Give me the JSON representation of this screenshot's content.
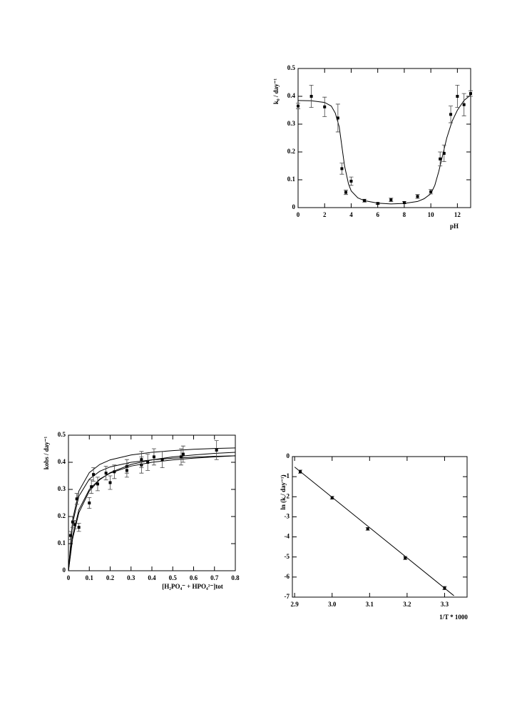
{
  "chart_data": [
    {
      "type": "scatter",
      "y_label": "k₀ / day⁻¹",
      "x_label": "pH",
      "xlim": [
        0,
        13
      ],
      "ylim": [
        0,
        0.5
      ],
      "xticks": [
        0,
        2,
        4,
        6,
        8,
        10,
        12
      ],
      "yticks": [
        0,
        0.1,
        0.2,
        0.3,
        0.4,
        0.5
      ],
      "points": {
        "x": [
          0,
          1,
          2,
          3,
          3.3,
          3.6,
          4,
          5,
          6,
          7,
          8,
          9,
          10,
          10.7,
          11,
          11.5,
          12,
          12.5,
          13
        ],
        "values": [
          0.365,
          0.4,
          0.362,
          0.322,
          0.14,
          0.055,
          0.095,
          0.025,
          0.015,
          0.028,
          0.018,
          0.04,
          0.057,
          0.175,
          0.195,
          0.335,
          0.4,
          0.37,
          0.41
        ],
        "errors": [
          0.01,
          0.04,
          0.035,
          0.05,
          0.02,
          0.008,
          0.015,
          0.005,
          0.003,
          0.006,
          0.004,
          0.007,
          0.008,
          0.025,
          0.03,
          0.03,
          0.04,
          0.04,
          0.01
        ]
      },
      "curves": [
        {
          "x": [
            0,
            1,
            2,
            2.5,
            2.8,
            3.1,
            3.3,
            3.5,
            3.8,
            4,
            4.5,
            5,
            6,
            7,
            8,
            9,
            9.5,
            10,
            10.3,
            10.6,
            10.9,
            11.2,
            11.6,
            12,
            12.5,
            13
          ],
          "values": [
            0.385,
            0.384,
            0.378,
            0.365,
            0.34,
            0.29,
            0.22,
            0.15,
            0.085,
            0.06,
            0.035,
            0.025,
            0.016,
            0.013,
            0.015,
            0.022,
            0.032,
            0.05,
            0.08,
            0.13,
            0.19,
            0.25,
            0.31,
            0.35,
            0.385,
            0.405
          ]
        }
      ]
    },
    {
      "type": "scatter",
      "y_label": "kobs / day⁻¹",
      "x_label": "[H₂PO₄⁻ + HPO₄²⁻]tot",
      "xlim": [
        0,
        0.8
      ],
      "ylim": [
        0,
        0.5
      ],
      "xticks": [
        0,
        0.1,
        0.2,
        0.3,
        0.4,
        0.5,
        0.6,
        0.7,
        0.8
      ],
      "yticks": [
        0,
        0.1,
        0.2,
        0.3,
        0.4,
        0.5
      ],
      "points": {
        "x": [
          0.01,
          0.02,
          0.03,
          0.04,
          0.05,
          0.1,
          0.11,
          0.12,
          0.14,
          0.18,
          0.2,
          0.22,
          0.28,
          0.28,
          0.35,
          0.35,
          0.38,
          0.41,
          0.45,
          0.54,
          0.55,
          0.71
        ],
        "values": [
          0.13,
          0.18,
          0.17,
          0.265,
          0.16,
          0.25,
          0.31,
          0.355,
          0.32,
          0.36,
          0.325,
          0.365,
          0.385,
          0.37,
          0.39,
          0.41,
          0.4,
          0.42,
          0.41,
          0.42,
          0.43,
          0.445
        ],
        "errors": [
          0.015,
          0.02,
          0.015,
          0.02,
          0.015,
          0.02,
          0.025,
          0.025,
          0.025,
          0.025,
          0.025,
          0.025,
          0.025,
          0.025,
          0.03,
          0.03,
          0.03,
          0.03,
          0.03,
          0.03,
          0.03,
          0.035
        ]
      },
      "curves": [
        {
          "x": [
            0,
            0.02,
            0.05,
            0.1,
            0.15,
            0.2,
            0.3,
            0.4,
            0.5,
            0.6,
            0.7,
            0.8
          ],
          "values": [
            0,
            0.188,
            0.294,
            0.362,
            0.392,
            0.409,
            0.427,
            0.437,
            0.443,
            0.448,
            0.451,
            0.453
          ]
        },
        {
          "x": [
            0,
            0.02,
            0.05,
            0.1,
            0.15,
            0.2,
            0.3,
            0.4,
            0.5,
            0.6,
            0.7,
            0.8
          ],
          "values": [
            0,
            0.118,
            0.214,
            0.294,
            0.336,
            0.362,
            0.392,
            0.409,
            0.42,
            0.427,
            0.433,
            0.437
          ]
        },
        {
          "x": [
            0,
            0.02,
            0.05,
            0.1,
            0.15,
            0.2,
            0.3,
            0.4,
            0.5,
            0.6,
            0.7,
            0.8
          ],
          "values": [
            0,
            0.129,
            0.225,
            0.3,
            0.338,
            0.36,
            0.386,
            0.4,
            0.409,
            0.415,
            0.42,
            0.424
          ]
        },
        {
          "x": [
            0,
            0.02,
            0.05,
            0.1,
            0.15,
            0.2,
            0.3,
            0.4,
            0.5,
            0.6,
            0.7,
            0.8
          ],
          "values": [
            0,
            0.176,
            0.275,
            0.338,
            0.367,
            0.383,
            0.4,
            0.409,
            0.415,
            0.419,
            0.422,
            0.424
          ]
        }
      ]
    },
    {
      "type": "scatter",
      "y_label": "ln (k / day⁻¹)",
      "x_label": "1/T * 1000",
      "xlim": [
        2.894,
        3.36
      ],
      "ylim": [
        -7,
        0
      ],
      "xticks": [
        2.9,
        {
          "value": 3,
          "label": "3.0"
        },
        3.1,
        3.2,
        3.3
      ],
      "yticks": [
        0,
        -1,
        -2,
        -3,
        -4,
        -5,
        -6,
        -7
      ],
      "points": {
        "x": [
          2.915,
          3.0,
          3.095,
          3.195,
          3.3
        ],
        "values": [
          -0.75,
          -2.05,
          -3.6,
          -5.05,
          -6.55
        ],
        "errors": [
          0.08,
          0.07,
          0.07,
          0.08,
          0.08
        ]
      },
      "curves": [
        {
          "x": [
            2.9,
            3.325
          ],
          "values": [
            -0.52,
            -6.93
          ]
        }
      ]
    }
  ]
}
